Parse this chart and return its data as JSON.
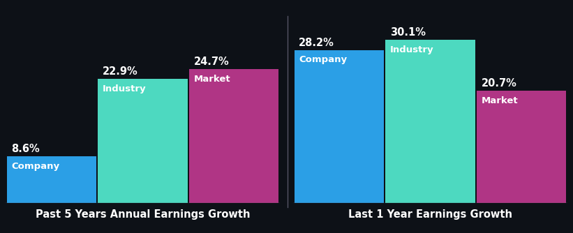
{
  "background_color": "#0d1117",
  "groups": [
    {
      "label": "Past 5 Years Annual Earnings Growth",
      "bars": [
        {
          "name": "Company",
          "value": 8.6,
          "color": "#2b9fe6"
        },
        {
          "name": "Industry",
          "value": 22.9,
          "color": "#4dd9c0"
        },
        {
          "name": "Market",
          "value": 24.7,
          "color": "#b03585"
        }
      ]
    },
    {
      "label": "Last 1 Year Earnings Growth",
      "bars": [
        {
          "name": "Company",
          "value": 28.2,
          "color": "#2b9fe6"
        },
        {
          "name": "Industry",
          "value": 30.1,
          "color": "#4dd9c0"
        },
        {
          "name": "Market",
          "value": 20.7,
          "color": "#b03585"
        }
      ]
    }
  ],
  "ylim": [
    0,
    34
  ],
  "value_fontsize": 10.5,
  "label_fontsize": 9.5,
  "group_label_fontsize": 10.5,
  "text_color": "#ffffff",
  "divider_color": "#555566"
}
